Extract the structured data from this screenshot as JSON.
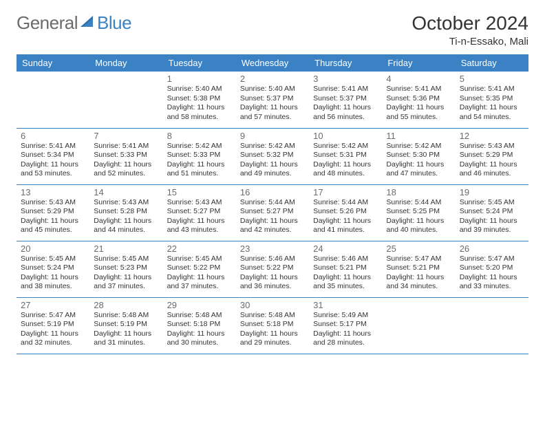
{
  "brand": {
    "left": "General",
    "right": "Blue"
  },
  "title": "October 2024",
  "location": "Ti-n-Essako, Mali",
  "styling": {
    "header_bg": "#3b82c4",
    "header_text": "#ffffff",
    "rule_color": "#3b82c4",
    "daynum_color": "#6b6b6b",
    "body_text": "#333333",
    "logo_gray": "#6b6b6b",
    "logo_blue": "#3b82c4",
    "page_bg": "#ffffff",
    "month_title_fontsize": 28,
    "header_fontsize": 13,
    "cell_fontsize": 10.5
  },
  "weekdays": [
    "Sunday",
    "Monday",
    "Tuesday",
    "Wednesday",
    "Thursday",
    "Friday",
    "Saturday"
  ],
  "weeks": [
    [
      null,
      null,
      {
        "d": "1",
        "sr": "5:40 AM",
        "ss": "5:38 PM",
        "dl": "11 hours and 58 minutes."
      },
      {
        "d": "2",
        "sr": "5:40 AM",
        "ss": "5:37 PM",
        "dl": "11 hours and 57 minutes."
      },
      {
        "d": "3",
        "sr": "5:41 AM",
        "ss": "5:37 PM",
        "dl": "11 hours and 56 minutes."
      },
      {
        "d": "4",
        "sr": "5:41 AM",
        "ss": "5:36 PM",
        "dl": "11 hours and 55 minutes."
      },
      {
        "d": "5",
        "sr": "5:41 AM",
        "ss": "5:35 PM",
        "dl": "11 hours and 54 minutes."
      }
    ],
    [
      {
        "d": "6",
        "sr": "5:41 AM",
        "ss": "5:34 PM",
        "dl": "11 hours and 53 minutes."
      },
      {
        "d": "7",
        "sr": "5:41 AM",
        "ss": "5:33 PM",
        "dl": "11 hours and 52 minutes."
      },
      {
        "d": "8",
        "sr": "5:42 AM",
        "ss": "5:33 PM",
        "dl": "11 hours and 51 minutes."
      },
      {
        "d": "9",
        "sr": "5:42 AM",
        "ss": "5:32 PM",
        "dl": "11 hours and 49 minutes."
      },
      {
        "d": "10",
        "sr": "5:42 AM",
        "ss": "5:31 PM",
        "dl": "11 hours and 48 minutes."
      },
      {
        "d": "11",
        "sr": "5:42 AM",
        "ss": "5:30 PM",
        "dl": "11 hours and 47 minutes."
      },
      {
        "d": "12",
        "sr": "5:43 AM",
        "ss": "5:29 PM",
        "dl": "11 hours and 46 minutes."
      }
    ],
    [
      {
        "d": "13",
        "sr": "5:43 AM",
        "ss": "5:29 PM",
        "dl": "11 hours and 45 minutes."
      },
      {
        "d": "14",
        "sr": "5:43 AM",
        "ss": "5:28 PM",
        "dl": "11 hours and 44 minutes."
      },
      {
        "d": "15",
        "sr": "5:43 AM",
        "ss": "5:27 PM",
        "dl": "11 hours and 43 minutes."
      },
      {
        "d": "16",
        "sr": "5:44 AM",
        "ss": "5:27 PM",
        "dl": "11 hours and 42 minutes."
      },
      {
        "d": "17",
        "sr": "5:44 AM",
        "ss": "5:26 PM",
        "dl": "11 hours and 41 minutes."
      },
      {
        "d": "18",
        "sr": "5:44 AM",
        "ss": "5:25 PM",
        "dl": "11 hours and 40 minutes."
      },
      {
        "d": "19",
        "sr": "5:45 AM",
        "ss": "5:24 PM",
        "dl": "11 hours and 39 minutes."
      }
    ],
    [
      {
        "d": "20",
        "sr": "5:45 AM",
        "ss": "5:24 PM",
        "dl": "11 hours and 38 minutes."
      },
      {
        "d": "21",
        "sr": "5:45 AM",
        "ss": "5:23 PM",
        "dl": "11 hours and 37 minutes."
      },
      {
        "d": "22",
        "sr": "5:45 AM",
        "ss": "5:22 PM",
        "dl": "11 hours and 37 minutes."
      },
      {
        "d": "23",
        "sr": "5:46 AM",
        "ss": "5:22 PM",
        "dl": "11 hours and 36 minutes."
      },
      {
        "d": "24",
        "sr": "5:46 AM",
        "ss": "5:21 PM",
        "dl": "11 hours and 35 minutes."
      },
      {
        "d": "25",
        "sr": "5:47 AM",
        "ss": "5:21 PM",
        "dl": "11 hours and 34 minutes."
      },
      {
        "d": "26",
        "sr": "5:47 AM",
        "ss": "5:20 PM",
        "dl": "11 hours and 33 minutes."
      }
    ],
    [
      {
        "d": "27",
        "sr": "5:47 AM",
        "ss": "5:19 PM",
        "dl": "11 hours and 32 minutes."
      },
      {
        "d": "28",
        "sr": "5:48 AM",
        "ss": "5:19 PM",
        "dl": "11 hours and 31 minutes."
      },
      {
        "d": "29",
        "sr": "5:48 AM",
        "ss": "5:18 PM",
        "dl": "11 hours and 30 minutes."
      },
      {
        "d": "30",
        "sr": "5:48 AM",
        "ss": "5:18 PM",
        "dl": "11 hours and 29 minutes."
      },
      {
        "d": "31",
        "sr": "5:49 AM",
        "ss": "5:17 PM",
        "dl": "11 hours and 28 minutes."
      },
      null,
      null
    ]
  ],
  "labels": {
    "sunrise": "Sunrise:",
    "sunset": "Sunset:",
    "daylight": "Daylight:"
  }
}
